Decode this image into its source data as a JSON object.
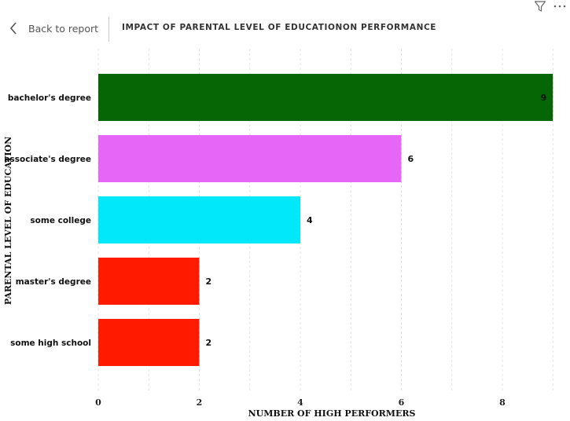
{
  "header": {
    "back_label": "Back to report",
    "title": "IMPACT OF PARENTAL LEVEL OF EDUCATIONON PERFORMANCE"
  },
  "icons": {
    "back": "chevron-left-icon",
    "filter": "filter-icon",
    "more": "more-options-icon"
  },
  "chart_data": {
    "type": "bar",
    "orientation": "horizontal",
    "categories": [
      "bachelor's degree",
      "associate's degree",
      "some college",
      "master's degree",
      "some high school"
    ],
    "values": [
      9,
      6,
      4,
      2,
      2
    ],
    "colors": [
      "#066606",
      "#e666f8",
      "#00e8fa",
      "#ff1a00",
      "#ff1a00"
    ],
    "xlabel": "NUMBER OF HIGH PERFORMERS",
    "ylabel": "PARENTAL LEVEL OF EDUCATION",
    "xlim": [
      0,
      9
    ],
    "xticks": [
      0,
      2,
      4,
      6,
      8
    ],
    "grid": true
  }
}
